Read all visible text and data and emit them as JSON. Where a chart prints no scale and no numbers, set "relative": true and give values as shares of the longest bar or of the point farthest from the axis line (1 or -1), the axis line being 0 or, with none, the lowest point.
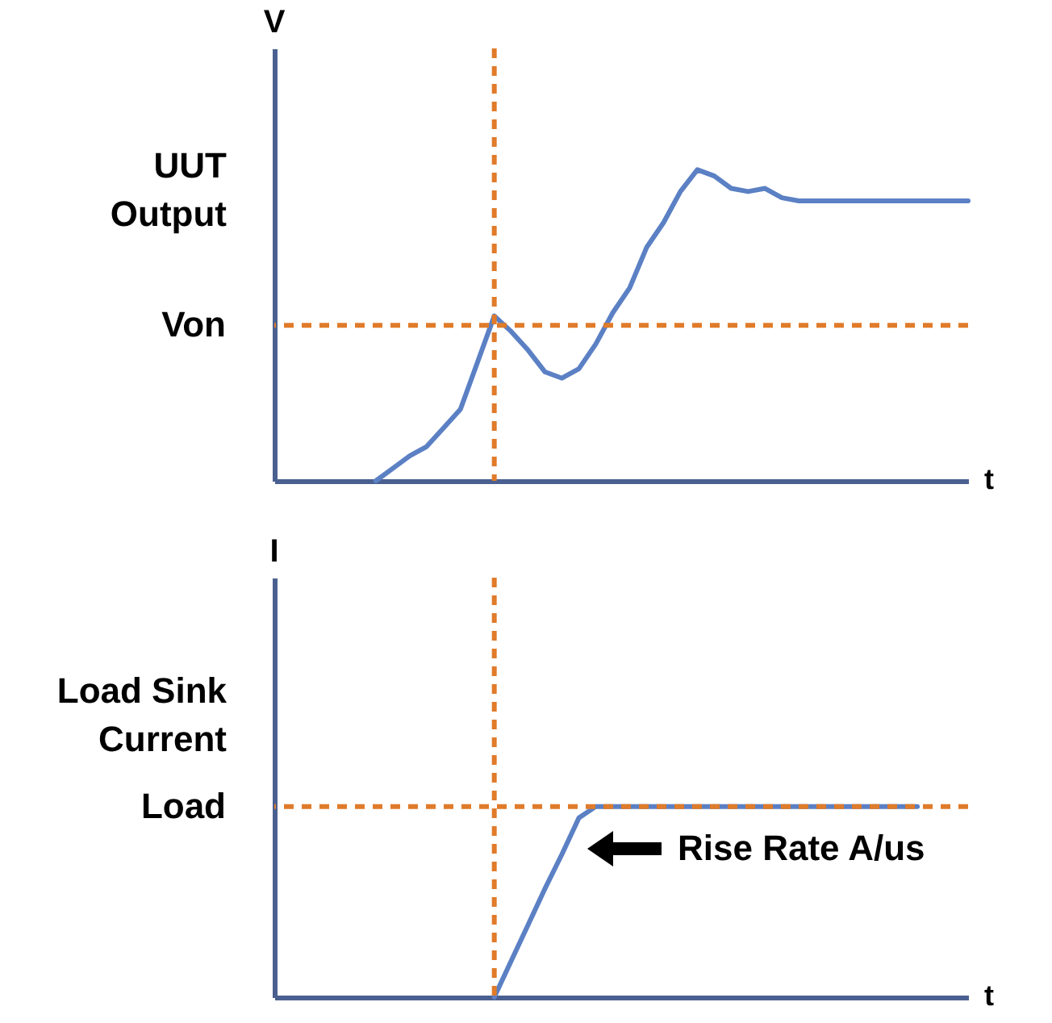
{
  "chart_data": [
    {
      "type": "line",
      "relative": true,
      "ylabel": "UUT Output",
      "xlabel": "t",
      "annotations": [
        "V"
      ],
      "categories": [
        null,
        null,
        null,
        null,
        null,
        null,
        null,
        null,
        null,
        null,
        null,
        null,
        null,
        null,
        null,
        null,
        null,
        null,
        null,
        null,
        null,
        null,
        null,
        null,
        null,
        null,
        null,
        null,
        null,
        null,
        null,
        null,
        null,
        null,
        null,
        null,
        null,
        null,
        null,
        null,
        null,
        null
      ],
      "series": [
        {
          "color": "#5b80c4",
          "values": [
            null,
            null,
            null,
            null,
            null,
            null,
            0,
            0.04,
            0.08,
            0.11,
            0.17,
            0.23,
            0.38,
            0.53,
            0.48,
            0.42,
            0.35,
            0.33,
            0.36,
            0.44,
            0.54,
            0.62,
            0.75,
            0.83,
            0.93,
            1,
            0.98,
            0.94,
            0.93,
            0.94,
            0.91,
            0.9,
            0.9,
            0.9,
            0.9,
            0.9,
            0.9,
            0.9,
            0.9,
            0.9,
            0.9,
            0.9
          ]
        }
      ],
      "ref_lines": [
        {
          "axis": "y",
          "value": 0.5,
          "label": "Von",
          "color": "#e07b2a",
          "line_style": "dashed"
        }
      ]
    },
    {
      "type": "line",
      "relative": true,
      "ylabel": "Load Sink Current",
      "xlabel": "t",
      "annotations": [
        "I",
        "Rise Rate A/us"
      ],
      "categories": [
        null,
        null,
        null,
        null,
        null,
        null,
        null,
        null,
        null,
        null,
        null,
        null,
        null,
        null,
        null,
        null,
        null,
        null,
        null,
        null,
        null,
        null,
        null,
        null,
        null,
        null,
        null,
        null,
        null,
        null,
        null,
        null,
        null,
        null,
        null,
        null,
        null,
        null,
        null,
        null,
        null,
        null
      ],
      "series": [
        {
          "color": "#5b80c4",
          "values": [
            null,
            null,
            null,
            null,
            null,
            null,
            null,
            null,
            null,
            null,
            null,
            null,
            null,
            0,
            0.19,
            0.38,
            0.57,
            0.75,
            0.94,
            1,
            1,
            1,
            1,
            1,
            1,
            1,
            1,
            1,
            1,
            1,
            1,
            1,
            1,
            1,
            1,
            1,
            1,
            1,
            1,
            null,
            null,
            null
          ]
        }
      ],
      "ref_lines": [
        {
          "axis": "y",
          "value": 1,
          "label": "Load",
          "color": "#e07b2a",
          "line_style": "dashed"
        }
      ]
    }
  ]
}
